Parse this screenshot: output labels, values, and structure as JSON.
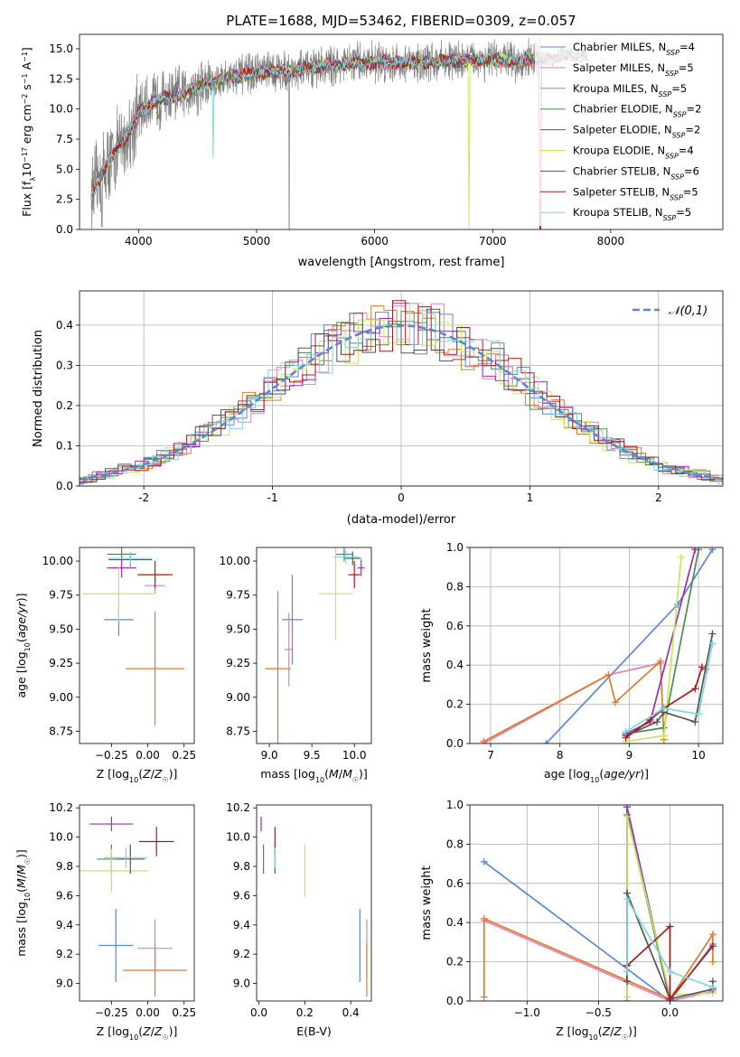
{
  "figure_title": "PLATE=1688, MJD=53462, FIBERID=0309, z=0.057",
  "colors": {
    "Chabrier MILES": "#5b87d6",
    "Salpeter MILES": "#e280b8",
    "Kroupa MILES": "#e07b2a",
    "Chabrier ELODIE": "#4f8a4f",
    "Salpeter ELODIE": "#9a2fb5",
    "Kroupa ELODIE": "#c7e65a",
    "Chabrier STELIB": "#555555",
    "Salpeter STELIB": "#b01818",
    "Kroupa STELIB": "#7fd6de",
    "data": "#808080",
    "normal": "#5b87d6"
  },
  "chart_data": [
    {
      "id": "spectrum",
      "type": "line",
      "title": "PLATE=1688, MJD=53462, FIBERID=0309, z=0.057",
      "xlabel": "wavelength [Angstrom, rest frame]",
      "ylabel": "Flux [f_λ10^-17 erg cm^-2 s^-1 A^-1]",
      "xlim": [
        3500,
        8950
      ],
      "ylim": [
        0,
        16.2
      ],
      "xticks": [
        4000,
        5000,
        6000,
        7000,
        8000
      ],
      "yticks": [
        0.0,
        2.5,
        5.0,
        7.5,
        10.0,
        12.5,
        15.0
      ],
      "grid": false,
      "legend_position": "right",
      "legend": [
        "Chabrier MILES, N_SSP=4",
        "Salpeter MILES, N_SSP=5",
        "Kroupa MILES, N_SSP=5",
        "Chabrier ELODIE, N_SSP=2",
        "Salpeter ELODIE, N_SSP=2",
        "Kroupa ELODIE, N_SSP=4",
        "Chabrier STELIB, N_SSP=6",
        "Salpeter STELIB, N_SSP=5",
        "Kroupa STELIB, N_SSP=5"
      ],
      "continuum": {
        "x": [
          3600,
          3700,
          3800,
          3900,
          4000,
          4100,
          4200,
          4300,
          4400,
          4500,
          4700,
          5000,
          5300,
          5600,
          6000,
          6300,
          6600,
          6900,
          7200,
          7400,
          7500,
          7600,
          7700,
          7800
        ],
        "y": [
          3.0,
          4.8,
          6.4,
          7.7,
          9.6,
          10.5,
          10.9,
          11.0,
          11.4,
          11.8,
          12.5,
          13.0,
          13.2,
          13.6,
          13.9,
          13.8,
          14.0,
          14.1,
          14.0,
          14.2,
          14.0,
          14.6,
          14.4,
          14.5
        ]
      },
      "data_range": [
        3600,
        7410
      ],
      "model_range": [
        3600,
        7800
      ]
    },
    {
      "id": "residuals",
      "type": "histogram",
      "xlabel": "(data-model)/error",
      "ylabel": "Normed distribution",
      "xlim": [
        -2.5,
        2.5
      ],
      "ylim": [
        0,
        0.485
      ],
      "xticks": [
        -2,
        -1,
        0,
        1,
        2
      ],
      "yticks": [
        0.0,
        0.1,
        0.2,
        0.3,
        0.4
      ],
      "grid": true,
      "legend": "𝒩(0,1)",
      "legend_position": "top-right"
    },
    {
      "id": "z-age",
      "type": "errorbar",
      "xlabel": "Z [log10(Z/Z☉)]",
      "ylabel": "age [log10(age/yr)]",
      "xlim": [
        -0.47,
        0.32
      ],
      "ylim": [
        8.66,
        10.1
      ],
      "xticks": [
        -0.25,
        0.0,
        0.25
      ],
      "xticklabels": [
        "−0.25",
        "0.00",
        "0.25"
      ],
      "yticks": [
        8.75,
        9.0,
        9.25,
        9.5,
        9.75,
        10.0
      ],
      "points": [
        {
          "s": "Chabrier MILES",
          "x": -0.2,
          "xe": 0.1,
          "y": 9.57,
          "ye": 0.12
        },
        {
          "s": "Salpeter MILES",
          "x": 0.05,
          "xe": 0.07,
          "y": 9.82,
          "ye": 0.06
        },
        {
          "s": "Kroupa MILES",
          "x": 0.05,
          "xe": 0.2,
          "y": 9.21,
          "ye": 0.42
        },
        {
          "s": "Chabrier ELODIE",
          "x": -0.18,
          "xe": 0.1,
          "y": 10.05,
          "ye": 0.05
        },
        {
          "s": "Salpeter ELODIE",
          "x": -0.18,
          "xe": 0.1,
          "y": 9.95,
          "ye": 0.07
        },
        {
          "s": "Kroupa ELODIE",
          "x": -0.2,
          "xe": 0.25,
          "y": 9.76,
          "ye": 0.2
        },
        {
          "s": "Chabrier STELIB",
          "x": -0.12,
          "xe": 0.15,
          "y": 10.01,
          "ye": 0.05
        },
        {
          "s": "Salpeter STELIB",
          "x": 0.05,
          "xe": 0.12,
          "y": 9.9,
          "ye": 0.1
        },
        {
          "s": "Kroupa STELIB",
          "x": -0.12,
          "xe": 0.15,
          "y": 10.02,
          "ye": 0.05
        }
      ]
    },
    {
      "id": "mass-age",
      "type": "errorbar",
      "xlabel": "mass [log10(M/M☉)]",
      "ylabel": "",
      "xlim": [
        8.85,
        10.2
      ],
      "ylim": [
        8.66,
        10.1
      ],
      "xticks": [
        9.0,
        9.5,
        10.0
      ],
      "yticks": [
        8.75,
        9.0,
        9.25,
        9.5,
        9.75,
        10.0
      ],
      "points": [
        {
          "s": "Chabrier MILES",
          "x": 9.27,
          "xe": 0.12,
          "y": 9.57,
          "ye": 0.33
        },
        {
          "s": "Salpeter MILES",
          "x": 9.23,
          "xe": 0.05,
          "y": 9.35,
          "ye": 0.27
        },
        {
          "s": "Kroupa MILES",
          "x": 9.1,
          "xe": 0.15,
          "y": 9.21,
          "ye": 0.57
        },
        {
          "s": "Chabrier ELODIE",
          "x": 9.88,
          "xe": 0.1,
          "y": 10.05,
          "ye": 0.05
        },
        {
          "s": "Salpeter ELODIE",
          "x": 10.08,
          "xe": 0.04,
          "y": 9.95,
          "ye": 0.06
        },
        {
          "s": "Kroupa ELODIE",
          "x": 9.78,
          "xe": 0.2,
          "y": 9.76,
          "ye": 0.34
        },
        {
          "s": "Chabrier STELIB",
          "x": 9.98,
          "xe": 0.1,
          "y": 10.02,
          "ye": 0.05
        },
        {
          "s": "Salpeter STELIB",
          "x": 10.0,
          "xe": 0.07,
          "y": 9.9,
          "ye": 0.1
        },
        {
          "s": "Kroupa STELIB",
          "x": 9.9,
          "xe": 0.15,
          "y": 10.03,
          "ye": 0.05
        }
      ]
    },
    {
      "id": "age-weight",
      "type": "line",
      "xlabel": "age [log10(age/yr)]",
      "ylabel": "mass weight",
      "xlim": [
        6.7,
        10.35
      ],
      "ylim": [
        0,
        1.0
      ],
      "xticks": [
        7,
        8,
        9,
        10
      ],
      "yticks": [
        0.0,
        0.2,
        0.4,
        0.6,
        0.8,
        1.0
      ],
      "grid": true,
      "series": [
        {
          "s": "Chabrier MILES",
          "x": [
            7.8,
            9.7,
            10.2
          ],
          "y": [
            0.0,
            0.71,
            0.99
          ]
        },
        {
          "s": "Salpeter MILES",
          "x": [
            6.9,
            8.7,
            9.45
          ],
          "y": [
            0.0,
            0.35,
            0.41
          ]
        },
        {
          "s": "Kroupa MILES",
          "x": [
            6.9,
            8.7,
            8.8,
            9.45,
            9.5
          ],
          "y": [
            0.01,
            0.35,
            0.21,
            0.42,
            0.02
          ]
        },
        {
          "s": "Chabrier ELODIE",
          "x": [
            8.95,
            9.5,
            10.0
          ],
          "y": [
            0.05,
            0.08,
            0.99
          ]
        },
        {
          "s": "Salpeter ELODIE",
          "x": [
            8.95,
            9.3,
            9.95
          ],
          "y": [
            0.05,
            0.11,
            0.99
          ]
        },
        {
          "s": "Kroupa ELODIE",
          "x": [
            8.95,
            9.5,
            9.75
          ],
          "y": [
            0.01,
            0.04,
            0.95
          ]
        },
        {
          "s": "Chabrier STELIB",
          "x": [
            8.95,
            9.4,
            9.5,
            9.95,
            10.1,
            10.2
          ],
          "y": [
            0.04,
            0.11,
            0.16,
            0.11,
            0.38,
            0.56
          ]
        },
        {
          "s": "Salpeter STELIB",
          "x": [
            8.95,
            9.3,
            9.5,
            9.95,
            10.05
          ],
          "y": [
            0.03,
            0.12,
            0.18,
            0.28,
            0.39
          ]
        },
        {
          "s": "Kroupa STELIB",
          "x": [
            8.95,
            9.5,
            10.0,
            10.2
          ],
          "y": [
            0.06,
            0.18,
            0.15,
            0.51
          ]
        }
      ]
    },
    {
      "id": "z-mass",
      "type": "errorbar",
      "xlabel": "Z [log10(Z/Z☉)]",
      "ylabel": "mass [log10(M/M☉)]",
      "xlim": [
        -0.47,
        0.32
      ],
      "ylim": [
        8.88,
        10.22
      ],
      "xticks": [
        -0.25,
        0.0,
        0.25
      ],
      "xticklabels": [
        "−0.25",
        "0.00",
        "0.25"
      ],
      "yticks": [
        9.0,
        9.2,
        9.4,
        9.6,
        9.8,
        10.0,
        10.2
      ],
      "points": [
        {
          "s": "Chabrier MILES",
          "x": -0.22,
          "xe": 0.12,
          "y": 9.26,
          "ye": 0.25
        },
        {
          "s": "Salpeter MILES",
          "x": 0.05,
          "xe": 0.12,
          "y": 9.24,
          "ye": 0.2
        },
        {
          "s": "Kroupa MILES",
          "x": 0.05,
          "xe": 0.22,
          "y": 9.09,
          "ye": 0.18
        },
        {
          "s": "Chabrier ELODIE",
          "x": -0.25,
          "xe": 0.1,
          "y": 9.85,
          "ye": 0.1
        },
        {
          "s": "Salpeter ELODIE",
          "x": -0.25,
          "xe": 0.15,
          "y": 10.09,
          "ye": 0.05
        },
        {
          "s": "Kroupa ELODIE",
          "x": -0.25,
          "xe": 0.25,
          "y": 9.77,
          "ye": 0.15
        },
        {
          "s": "Chabrier STELIB",
          "x": -0.12,
          "xe": 0.1,
          "y": 9.85,
          "ye": 0.1
        },
        {
          "s": "Salpeter STELIB",
          "x": 0.06,
          "xe": 0.12,
          "y": 9.97,
          "ye": 0.1
        },
        {
          "s": "Kroupa STELIB",
          "x": -0.15,
          "xe": 0.15,
          "y": 9.86,
          "ye": 0.07
        }
      ]
    },
    {
      "id": "ebv-mass",
      "type": "errorbar",
      "xlabel": "E(B-V)",
      "ylabel": "",
      "xlim": [
        -0.01,
        0.49
      ],
      "ylim": [
        8.88,
        10.22
      ],
      "xticks": [
        0.0,
        0.2,
        0.4
      ],
      "yticks": [
        9.0,
        9.2,
        9.4,
        9.6,
        9.8,
        10.0,
        10.2
      ],
      "points": [
        {
          "s": "Chabrier MILES",
          "x": 0.44,
          "xe": 0.0,
          "y": 9.26,
          "ye": 0.25
        },
        {
          "s": "Salpeter MILES",
          "x": 0.47,
          "xe": 0.0,
          "y": 9.24,
          "ye": 0.2
        },
        {
          "s": "Kroupa MILES",
          "x": 0.47,
          "xe": 0.0,
          "y": 9.09,
          "ye": 0.18
        },
        {
          "s": "Chabrier ELODIE",
          "x": 0.02,
          "xe": 0.0,
          "y": 9.85,
          "ye": 0.1
        },
        {
          "s": "Salpeter ELODIE",
          "x": 0.01,
          "xe": 0.0,
          "y": 10.09,
          "ye": 0.05
        },
        {
          "s": "Kroupa ELODIE",
          "x": 0.2,
          "xe": 0.0,
          "y": 9.77,
          "ye": 0.18
        },
        {
          "s": "Chabrier STELIB",
          "x": 0.07,
          "xe": 0.0,
          "y": 9.85,
          "ye": 0.1
        },
        {
          "s": "Salpeter STELIB",
          "x": 0.07,
          "xe": 0.0,
          "y": 9.97,
          "ye": 0.1
        },
        {
          "s": "Kroupa STELIB",
          "x": 0.07,
          "xe": 0.0,
          "y": 9.86,
          "ye": 0.07
        }
      ]
    },
    {
      "id": "z-weight",
      "type": "line",
      "xlabel": "Z [log10(Z/Z☉)]",
      "ylabel": "mass weight",
      "xlim": [
        -1.4,
        0.37
      ],
      "ylim": [
        0,
        1.0
      ],
      "xticks": [
        -1.0,
        -0.5,
        0.0
      ],
      "xticklabels": [
        "−1.0",
        "−0.5",
        "0.0"
      ],
      "yticks": [
        0.0,
        0.2,
        0.4,
        0.6,
        0.8,
        1.0
      ],
      "grid": true,
      "series": [
        {
          "s": "Chabrier MILES",
          "x": [
            -1.3,
            0.0,
            0.3
          ],
          "y": [
            0.71,
            0.0,
            0.29
          ]
        },
        {
          "s": "Salpeter MILES",
          "x": [
            -1.3,
            0.0,
            0.3
          ],
          "y": [
            0.41,
            0.0,
            0.05
          ]
        },
        {
          "s": "Kroupa MILES",
          "x": [
            -1.3,
            -1.3,
            0.0,
            0.3,
            0.3
          ],
          "y": [
            0.02,
            0.42,
            0.01,
            0.34,
            0.2
          ]
        },
        {
          "s": "Chabrier ELODIE",
          "x": [
            -0.3,
            -0.3,
            0.0
          ],
          "y": [
            0.1,
            0.95,
            0.0
          ]
        },
        {
          "s": "Salpeter ELODIE",
          "x": [
            -0.3,
            -0.3,
            0.0
          ],
          "y": [
            0.0,
            0.99,
            0.01
          ]
        },
        {
          "s": "Kroupa ELODIE",
          "x": [
            -0.3,
            -0.3,
            0.0,
            0.3
          ],
          "y": [
            0.02,
            0.94,
            0.03,
            0.04
          ]
        },
        {
          "s": "Chabrier STELIB",
          "x": [
            -0.3,
            -0.3,
            0.0,
            0.3,
            0.3
          ],
          "y": [
            0.1,
            0.55,
            0.01,
            0.06,
            0.1
          ]
        },
        {
          "s": "Salpeter STELIB",
          "x": [
            -0.3,
            0.0,
            0.0,
            0.3
          ],
          "y": [
            0.18,
            0.38,
            0.01,
            0.28
          ]
        },
        {
          "s": "Kroupa STELIB",
          "x": [
            -0.3,
            -0.3,
            0.0,
            0.3
          ],
          "y": [
            0.15,
            0.52,
            0.15,
            0.07
          ]
        }
      ]
    }
  ]
}
